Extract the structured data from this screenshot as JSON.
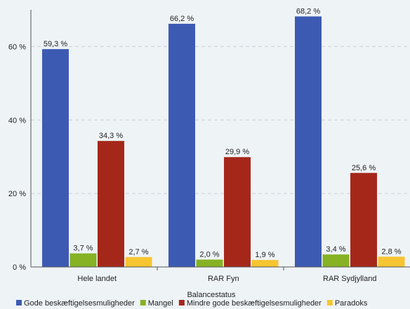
{
  "chart_data": {
    "type": "bar",
    "title": "",
    "xlabel": "Balancestatus",
    "ylabel": "",
    "ylim": [
      0,
      70
    ],
    "yticks": [
      0,
      20,
      40,
      60
    ],
    "ytick_labels": [
      "0 %",
      "20 %",
      "40 %",
      "60 %"
    ],
    "grid": true,
    "legend_position": "bottom",
    "categories": [
      "Hele landet",
      "RAR Fyn",
      "RAR Sydjylland"
    ],
    "series": [
      {
        "name": "Gode beskæftigelsesmuligheder",
        "color": "#3d5ab3",
        "values": [
          59.3,
          66.2,
          68.2
        ],
        "labels": [
          "59,3 %",
          "66,2 %",
          "68,2 %"
        ]
      },
      {
        "name": "Mangel",
        "color": "#86b224",
        "values": [
          3.7,
          2.0,
          3.4
        ],
        "labels": [
          "3,7 %",
          "2,0 %",
          "3,4 %"
        ]
      },
      {
        "name": "Mindre gode beskæftigelsesmuligheder",
        "color": "#a5271a",
        "values": [
          34.3,
          29.9,
          25.6
        ],
        "labels": [
          "34,3 %",
          "29,9 %",
          "25,6 %"
        ]
      },
      {
        "name": "Paradoks",
        "color": "#f6c531",
        "values": [
          2.7,
          1.9,
          2.8
        ],
        "labels": [
          "2,7 %",
          "1,9 %",
          "2,8 %"
        ]
      }
    ]
  }
}
